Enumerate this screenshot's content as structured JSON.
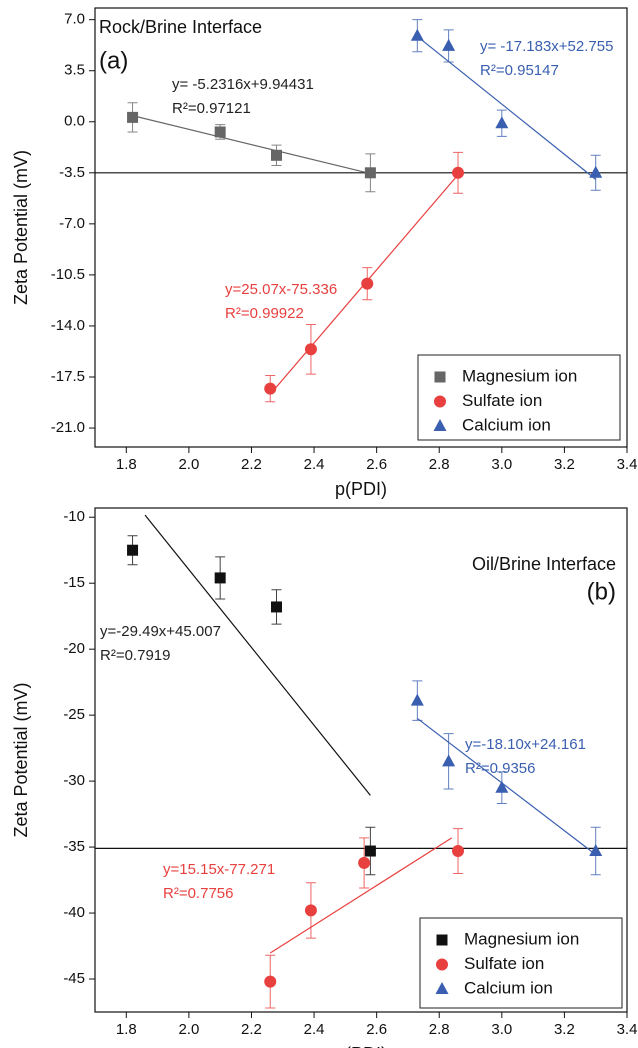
{
  "chart_data": [
    {
      "type": "scatter",
      "title": "Rock/Brine Interface",
      "panel_label": "(a)",
      "x_label": "p(PDI)",
      "y_label": "Zeta Potential (mV)",
      "xlim": [
        1.7,
        3.4
      ],
      "ylim": [
        -22.3,
        7.8
      ],
      "xticks": [
        1.8,
        {
          "value": 2.0,
          "label": "2.0"
        },
        2.2,
        2.4,
        2.6,
        2.8,
        {
          "value": 3.0,
          "label": "3.0"
        },
        3.2,
        3.4
      ],
      "yticks": [
        {
          "value": 7,
          "label": "7.0"
        },
        3.5,
        {
          "value": 0,
          "label": "0.0"
        },
        -3.5,
        {
          "value": -7,
          "label": "-7.0"
        },
        -10.5,
        {
          "value": -14,
          "label": "-14.0"
        },
        -17.5,
        {
          "value": -21,
          "label": "-21.0"
        }
      ],
      "hline": -3.5,
      "legend": "lower right",
      "series": [
        {
          "name": "Magnesium ion",
          "color": "#666666",
          "marker": "square",
          "x": [
            1.82,
            2.1,
            2.28,
            2.58
          ],
          "values": [
            0.3,
            -0.7,
            -2.3,
            -3.5
          ],
          "errors": [
            1.0,
            0.5,
            0.7,
            1.3
          ],
          "fit_x": [
            1.82,
            2.58
          ],
          "fit_y": [
            0.42,
            -3.55
          ]
        },
        {
          "name": "Sulfate ion",
          "color": "#e8403f",
          "marker": "circle",
          "x": [
            2.26,
            2.39,
            2.57,
            2.86
          ],
          "values": [
            -18.3,
            -15.6,
            -11.1,
            -3.5
          ],
          "errors": [
            0.9,
            1.7,
            1.1,
            1.4
          ],
          "fit_x": [
            2.26,
            2.86
          ],
          "fit_y": [
            -18.68,
            -3.63
          ]
        },
        {
          "name": "Calcium ion",
          "color": "#3a5fb0",
          "marker": "triangle",
          "x": [
            2.73,
            2.83,
            3.0,
            3.3
          ],
          "values": [
            5.9,
            5.2,
            -0.1,
            -3.5
          ],
          "errors": [
            1.1,
            1.1,
            0.9,
            1.2
          ],
          "fit_x": [
            2.73,
            3.3
          ],
          "fit_y": [
            5.85,
            -3.95
          ]
        }
      ],
      "annotations": [
        {
          "color": "#222222",
          "lines": [
            "y= -5.2316x+9.94431",
            "R²=0.97121"
          ]
        },
        {
          "color": "#3a5fb0",
          "lines": [
            "y= -17.183x+52.755",
            "R²=0.95147"
          ]
        },
        {
          "color": "#e8403f",
          "lines": [
            "y=25.07x-75.336",
            "R²=0.99922"
          ]
        }
      ]
    },
    {
      "type": "scatter",
      "title": "Oil/Brine Interface",
      "panel_label": "(b)",
      "x_label": "p(PDI)",
      "y_label": "Zeta Potential (mV)",
      "xlim": [
        1.7,
        3.4
      ],
      "ylim": [
        -47.5,
        -9.3
      ],
      "xticks": [
        1.8,
        {
          "value": 2.0,
          "label": "2.0"
        },
        2.2,
        2.4,
        2.6,
        2.8,
        {
          "value": 3.0,
          "label": "3.0"
        },
        3.2,
        3.4
      ],
      "yticks": [
        -10,
        -15,
        -20,
        -25,
        -30,
        -35,
        -40,
        -45
      ],
      "hline": -35.1,
      "legend": "lower right",
      "series": [
        {
          "name": "Magnesium ion",
          "color": "#111111",
          "marker": "square",
          "x": [
            1.82,
            2.1,
            2.28,
            2.58
          ],
          "values": [
            -12.5,
            -14.6,
            -16.8,
            -35.3
          ],
          "errors": [
            1.1,
            1.6,
            1.3,
            1.8
          ],
          "fit_x": [
            1.86,
            2.58
          ],
          "fit_y": [
            -9.84,
            -31.08
          ]
        },
        {
          "name": "Sulfate ion",
          "color": "#e8403f",
          "marker": "circle",
          "x": [
            2.26,
            2.39,
            2.56,
            2.86
          ],
          "values": [
            -45.2,
            -39.8,
            -36.2,
            -35.3
          ],
          "errors": [
            2.0,
            2.1,
            1.9,
            1.7
          ],
          "fit_x": [
            2.26,
            2.84
          ],
          "fit_y": [
            -43.03,
            -34.3
          ]
        },
        {
          "name": "Calcium ion",
          "color": "#3a5fb0",
          "marker": "triangle",
          "x": [
            2.73,
            2.83,
            3.0,
            3.3
          ],
          "values": [
            -23.9,
            -28.5,
            -30.5,
            -35.3
          ],
          "errors": [
            1.5,
            2.1,
            1.2,
            1.8
          ],
          "fit_x": [
            2.73,
            3.3
          ],
          "fit_y": [
            -25.25,
            -35.57
          ]
        }
      ],
      "annotations": [
        {
          "color": "#222222",
          "lines": [
            "y=-29.49x+45.007",
            "R²=0.7919"
          ]
        },
        {
          "color": "#3a5fb0",
          "lines": [
            "y=-18.10x+24.161",
            "R²=0.9356"
          ]
        },
        {
          "color": "#e8403f",
          "lines": [
            "y=15.15x-77.271",
            "R²=0.7756"
          ]
        }
      ]
    }
  ]
}
